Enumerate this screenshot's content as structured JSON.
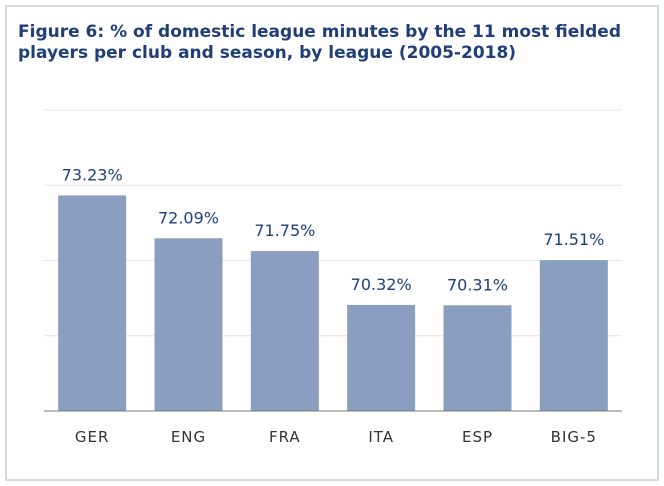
{
  "title": "Figure 6: % of domestic league minutes by the 11 most fielded players per club and season, by league (2005-2018)",
  "colors": {
    "bar": "#8a9fbf",
    "label": "#1f3f7a",
    "tick": "#333333",
    "grid": "#e6e6e6",
    "frame": "#d3dae6"
  },
  "chart_data": {
    "type": "bar",
    "title": "Figure 6: % of domestic league minutes by the 11 most fielded players per club and season, by league (2005-2018)",
    "xlabel": "",
    "ylabel": "",
    "categories": [
      "GER",
      "ENG",
      "FRA",
      "ITA",
      "ESP",
      "BIG-5"
    ],
    "values": [
      73.23,
      72.09,
      71.75,
      70.32,
      70.31,
      71.51
    ],
    "data_labels": [
      "73.23%",
      "72.09%",
      "71.75%",
      "70.32%",
      "70.31%",
      "71.51%"
    ],
    "ylim": [
      67.5,
      75.5
    ],
    "grid": true,
    "legend": "none"
  }
}
